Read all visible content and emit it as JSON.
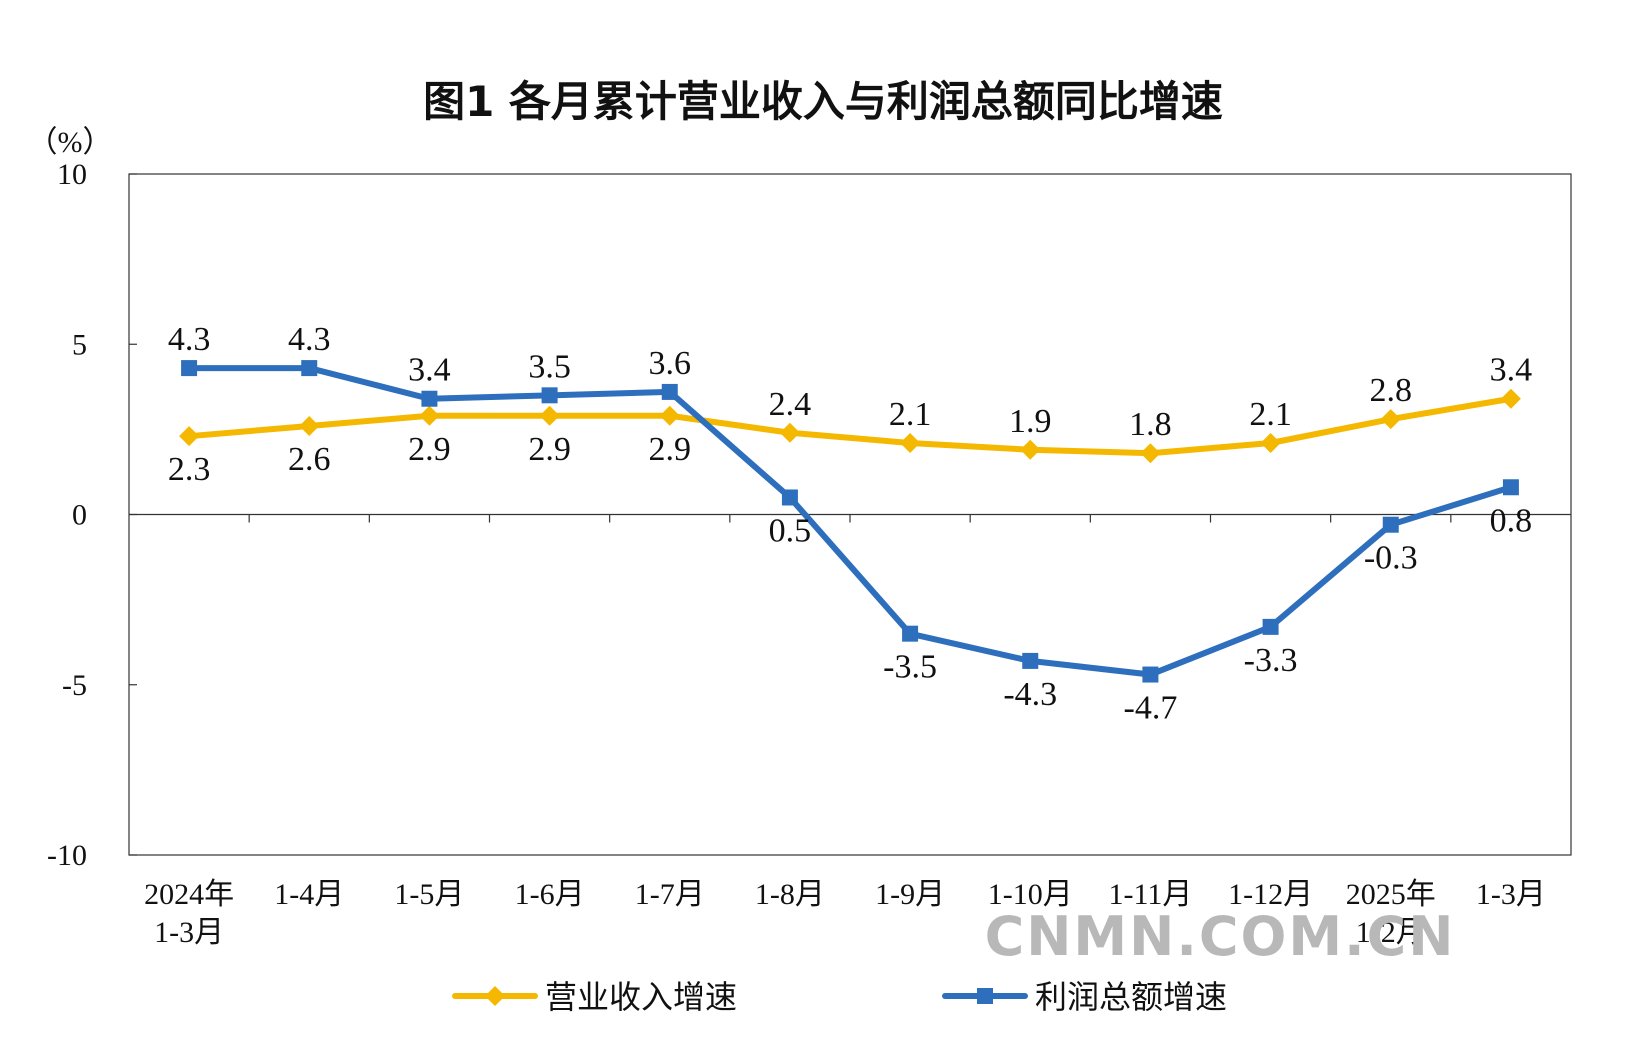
{
  "chart_data": {
    "type": "line",
    "title": "图1  各月累计营业收入与利润总额同比增速",
    "ylabel": "（%）",
    "ylim": [
      -10,
      10
    ],
    "yticks": [
      "10",
      "5",
      "0",
      "-5",
      "-10"
    ],
    "ytick_values": [
      10,
      5,
      0,
      -5,
      -10
    ],
    "categories": [
      [
        "2024年",
        "1-3月"
      ],
      [
        "1-4月"
      ],
      [
        "1-5月"
      ],
      [
        "1-6月"
      ],
      [
        "1-7月"
      ],
      [
        "1-8月"
      ],
      [
        "1-9月"
      ],
      [
        "1-10月"
      ],
      [
        "1-11月"
      ],
      [
        "1-12月"
      ],
      [
        "2025年",
        "1-2月"
      ],
      [
        "1-3月"
      ]
    ],
    "series": [
      {
        "name": "营业收入增速",
        "color": "#f5b800",
        "marker": "diamond",
        "values": [
          2.3,
          2.6,
          2.9,
          2.9,
          2.9,
          2.4,
          2.1,
          1.9,
          1.8,
          2.1,
          2.8,
          3.4
        ],
        "labels": [
          "2.3",
          "2.6",
          "2.9",
          "2.9",
          "2.9",
          "2.4",
          "2.1",
          "1.9",
          "1.8",
          "2.1",
          "2.8",
          "3.4"
        ],
        "label_side": [
          "below",
          "below",
          "below",
          "below",
          "below",
          "above",
          "above",
          "above",
          "above",
          "above",
          "above",
          "above"
        ]
      },
      {
        "name": "利润总额增速",
        "color": "#2e6fbd",
        "marker": "square",
        "values": [
          4.3,
          4.3,
          3.4,
          3.5,
          3.6,
          0.5,
          -3.5,
          -4.3,
          -4.7,
          -3.3,
          -0.3,
          0.8
        ],
        "labels": [
          "4.3",
          "4.3",
          "3.4",
          "3.5",
          "3.6",
          "0.5",
          "-3.5",
          "-4.3",
          "-4.7",
          "-3.3",
          "-0.3",
          "0.8"
        ],
        "label_side": [
          "above",
          "above",
          "above",
          "above",
          "above",
          "below",
          "below",
          "below",
          "below",
          "below",
          "below",
          "below"
        ]
      }
    ],
    "grid": false,
    "legend_position": "bottom"
  },
  "watermark": "CNMN.COM.CN"
}
